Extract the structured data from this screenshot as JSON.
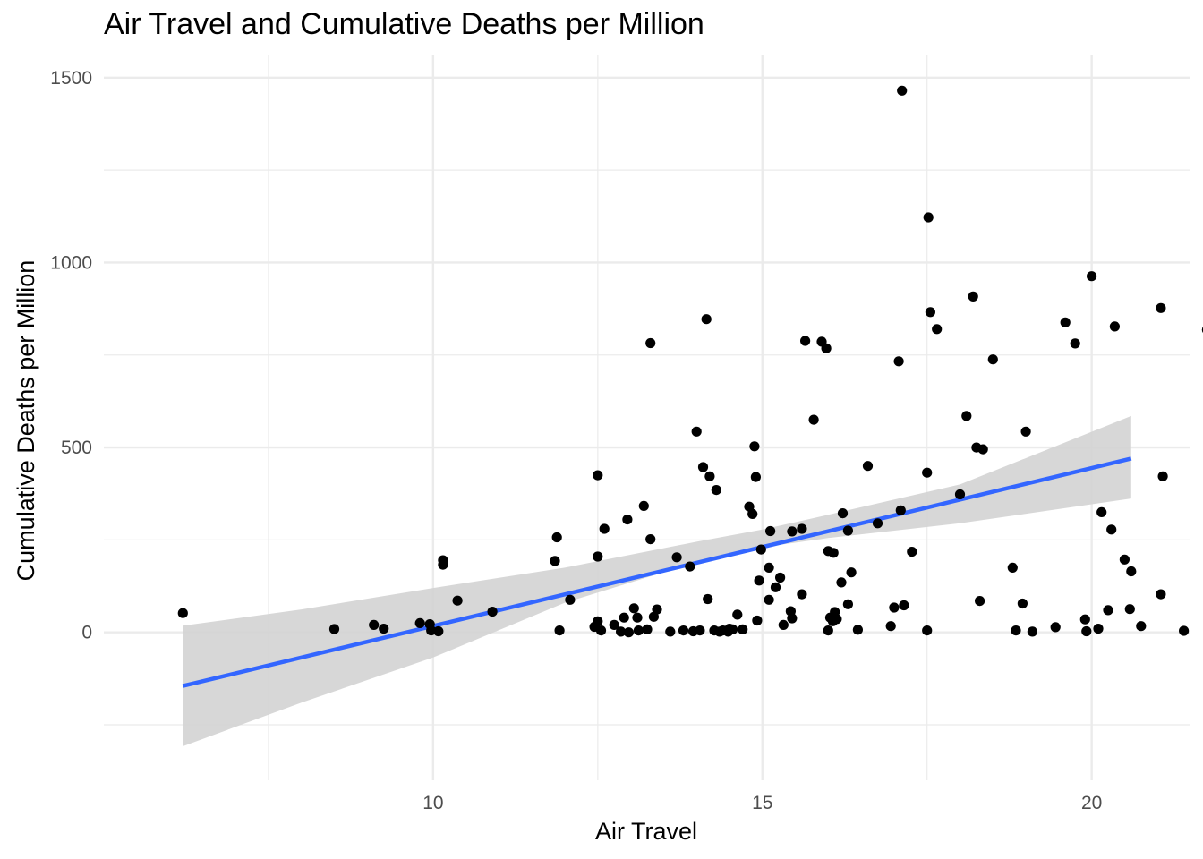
{
  "chart_data": {
    "type": "scatter",
    "title": "Air Travel and Cumulative Deaths per Million",
    "xlabel": "Air Travel",
    "ylabel": "Cumulative Deaths per Million",
    "xlim": [
      5.0,
      21.5
    ],
    "ylim": [
      -400,
      1560
    ],
    "x_ticks": [
      10,
      15,
      20
    ],
    "x_minor_ticks": [
      7.5,
      12.5,
      17.5
    ],
    "y_ticks": [
      0,
      500,
      1000,
      1500
    ],
    "y_minor_ticks": [
      -250,
      250,
      750,
      1250
    ],
    "grid": true,
    "colors": {
      "points": "#000000",
      "trend": "#3366ff",
      "band": "#d3d3d3",
      "grid": "#ebebeb"
    },
    "trend": {
      "x": [
        6.2,
        20.6
      ],
      "y": [
        -145,
        470
      ]
    },
    "band": {
      "x": [
        6.2,
        8.0,
        10.0,
        12.0,
        14.0,
        15.0,
        16.0,
        18.0,
        20.6
      ],
      "upper": [
        18,
        62,
        120,
        175,
        245,
        278,
        318,
        400,
        585
      ],
      "lower": [
        -308,
        -190,
        -68,
        80,
        190,
        230,
        255,
        295,
        362
      ]
    },
    "points": [
      [
        6.2,
        52
      ],
      [
        8.5,
        9
      ],
      [
        9.1,
        20
      ],
      [
        9.25,
        10
      ],
      [
        9.8,
        25
      ],
      [
        9.95,
        22
      ],
      [
        9.97,
        5
      ],
      [
        10.08,
        3
      ],
      [
        10.15,
        195
      ],
      [
        10.15,
        183
      ],
      [
        10.37,
        86
      ],
      [
        10.9,
        56
      ],
      [
        11.85,
        193
      ],
      [
        11.88,
        257
      ],
      [
        11.92,
        5
      ],
      [
        12.08,
        88
      ],
      [
        12.45,
        15
      ],
      [
        12.5,
        205
      ],
      [
        12.5,
        425
      ],
      [
        12.5,
        30
      ],
      [
        12.55,
        5
      ],
      [
        12.6,
        280
      ],
      [
        12.75,
        20
      ],
      [
        12.85,
        2
      ],
      [
        12.9,
        40
      ],
      [
        12.95,
        305
      ],
      [
        12.97,
        0
      ],
      [
        13.05,
        65
      ],
      [
        13.1,
        40
      ],
      [
        13.12,
        5
      ],
      [
        13.2,
        342
      ],
      [
        13.25,
        8
      ],
      [
        13.3,
        252
      ],
      [
        13.3,
        782
      ],
      [
        13.35,
        42
      ],
      [
        13.4,
        62
      ],
      [
        13.6,
        2
      ],
      [
        13.7,
        203
      ],
      [
        13.8,
        5
      ],
      [
        13.9,
        178
      ],
      [
        13.95,
        3
      ],
      [
        14.0,
        543
      ],
      [
        14.05,
        5
      ],
      [
        14.1,
        447
      ],
      [
        14.15,
        847
      ],
      [
        14.17,
        90
      ],
      [
        14.2,
        422
      ],
      [
        14.27,
        5
      ],
      [
        14.3,
        385
      ],
      [
        14.35,
        2
      ],
      [
        14.4,
        5
      ],
      [
        14.48,
        2
      ],
      [
        14.5,
        10
      ],
      [
        14.55,
        8
      ],
      [
        14.62,
        48
      ],
      [
        14.7,
        8
      ],
      [
        14.8,
        340
      ],
      [
        14.85,
        320
      ],
      [
        14.88,
        503
      ],
      [
        14.9,
        420
      ],
      [
        14.92,
        32
      ],
      [
        14.95,
        140
      ],
      [
        14.98,
        224
      ],
      [
        15.1,
        88
      ],
      [
        15.1,
        175
      ],
      [
        15.12,
        274
      ],
      [
        15.2,
        122
      ],
      [
        15.27,
        148
      ],
      [
        15.32,
        20
      ],
      [
        15.43,
        57
      ],
      [
        15.45,
        38
      ],
      [
        15.45,
        273
      ],
      [
        15.6,
        280
      ],
      [
        15.6,
        103
      ],
      [
        15.65,
        788
      ],
      [
        15.78,
        575
      ],
      [
        15.9,
        786
      ],
      [
        15.97,
        768
      ],
      [
        16.0,
        220
      ],
      [
        16.0,
        5
      ],
      [
        16.03,
        40
      ],
      [
        16.07,
        30
      ],
      [
        16.08,
        215
      ],
      [
        16.1,
        55
      ],
      [
        16.13,
        36
      ],
      [
        16.2,
        135
      ],
      [
        16.22,
        322
      ],
      [
        16.3,
        76
      ],
      [
        16.3,
        275
      ],
      [
        16.35,
        162
      ],
      [
        16.45,
        7
      ],
      [
        16.6,
        450
      ],
      [
        16.75,
        295
      ],
      [
        16.95,
        17
      ],
      [
        17.0,
        67
      ],
      [
        17.07,
        733
      ],
      [
        17.1,
        330
      ],
      [
        17.12,
        1465
      ],
      [
        17.15,
        73
      ],
      [
        17.27,
        218
      ],
      [
        17.5,
        432
      ],
      [
        17.5,
        5
      ],
      [
        17.52,
        1122
      ],
      [
        17.55,
        866
      ],
      [
        17.65,
        820
      ],
      [
        18.0,
        373
      ],
      [
        18.1,
        585
      ],
      [
        18.2,
        908
      ],
      [
        18.25,
        500
      ],
      [
        18.3,
        85
      ],
      [
        18.35,
        495
      ],
      [
        18.5,
        738
      ],
      [
        18.8,
        175
      ],
      [
        18.85,
        5
      ],
      [
        18.95,
        78
      ],
      [
        19.0,
        543
      ],
      [
        19.1,
        2
      ],
      [
        19.45,
        14
      ],
      [
        19.6,
        838
      ],
      [
        19.75,
        781
      ],
      [
        19.9,
        35
      ],
      [
        19.92,
        3
      ],
      [
        20.0,
        963
      ],
      [
        20.1,
        10
      ],
      [
        20.15,
        325
      ],
      [
        20.25,
        60
      ],
      [
        20.3,
        278
      ],
      [
        20.35,
        827
      ],
      [
        20.5,
        197
      ],
      [
        20.58,
        63
      ],
      [
        20.6,
        165
      ],
      [
        20.75,
        17
      ],
      [
        21.05,
        877
      ],
      [
        21.05,
        103
      ],
      [
        21.08,
        422
      ],
      [
        21.4,
        4
      ],
      [
        21.75,
        818
      ]
    ]
  }
}
